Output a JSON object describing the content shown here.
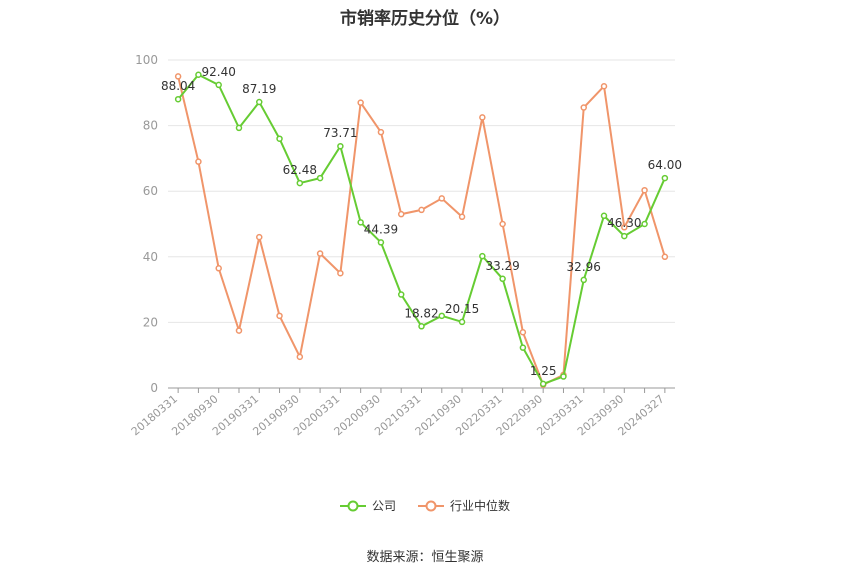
{
  "chart_data": {
    "type": "line",
    "title": "市销率历史分位（%）",
    "ylim": [
      0,
      100
    ],
    "yticks": [
      0,
      20,
      40,
      60,
      80,
      100
    ],
    "x_tick_labels": [
      "20180331",
      "20180930",
      "20190331",
      "20190930",
      "20200331",
      "20200930",
      "20210331",
      "20210930",
      "20220331",
      "20220930",
      "20230331",
      "20230930",
      "20240327"
    ],
    "series": [
      {
        "name": "公司",
        "color": "#66cc33",
        "values": [
          88.04,
          95.5,
          92.4,
          79.3,
          87.19,
          76.0,
          62.48,
          64.0,
          73.71,
          50.5,
          44.39,
          28.5,
          18.82,
          22.0,
          20.15,
          40.2,
          33.29,
          12.3,
          1.25,
          3.5,
          32.96,
          52.5,
          46.3,
          50.0,
          64.0
        ],
        "labels": [
          "88.04",
          "",
          "92.40",
          "",
          "87.19",
          "",
          "62.48",
          "",
          "73.71",
          "",
          "44.39",
          "",
          "18.82",
          "",
          "20.15",
          "",
          "33.29",
          "",
          "1.25",
          "",
          "32.96",
          "",
          "46.30",
          "",
          "64.00"
        ]
      },
      {
        "name": "行业中位数",
        "color": "#f0956a",
        "values": [
          95.0,
          69.0,
          36.5,
          17.5,
          46.0,
          22.0,
          9.5,
          41.0,
          35.0,
          87.0,
          78.0,
          53.0,
          54.3,
          57.8,
          52.2,
          82.5,
          50.0,
          17.0,
          1.0,
          4.0,
          85.5,
          92.0,
          49.0,
          60.3,
          40.0
        ]
      }
    ],
    "grid": true,
    "legend_position": "bottom"
  },
  "legend": [
    {
      "label": "公司",
      "color": "#66cc33"
    },
    {
      "label": "行业中位数",
      "color": "#f0956a"
    }
  ],
  "source": "数据来源：恒生聚源"
}
